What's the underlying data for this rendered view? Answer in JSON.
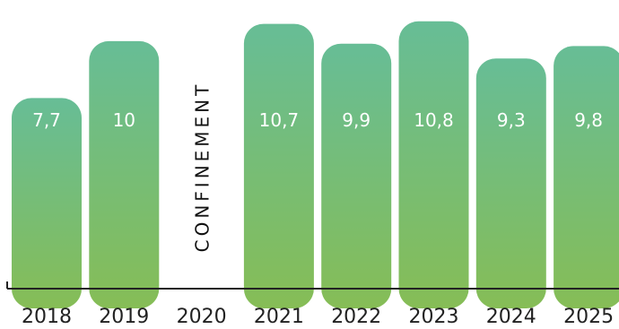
{
  "chart_data": {
    "type": "bar",
    "categories": [
      "2018",
      "2019",
      "2020",
      "2021",
      "2022",
      "2023",
      "2024",
      "2025"
    ],
    "values": [
      7.7,
      10,
      null,
      10.7,
      9.9,
      10.8,
      9.3,
      9.8
    ],
    "value_labels": [
      "7,7",
      "10",
      "",
      "10,7",
      "9,9",
      "10,8",
      "9,3",
      "9,8"
    ],
    "annotation": {
      "category": "2020",
      "text": "CONFINEMENT"
    },
    "ylim": [
      0,
      11.3
    ],
    "grid": false,
    "legend": "none",
    "colors": {
      "bar_top": "#67bd96",
      "bar_bottom": "#86bd56",
      "axis": "#222222",
      "label": "#ffffff"
    }
  }
}
